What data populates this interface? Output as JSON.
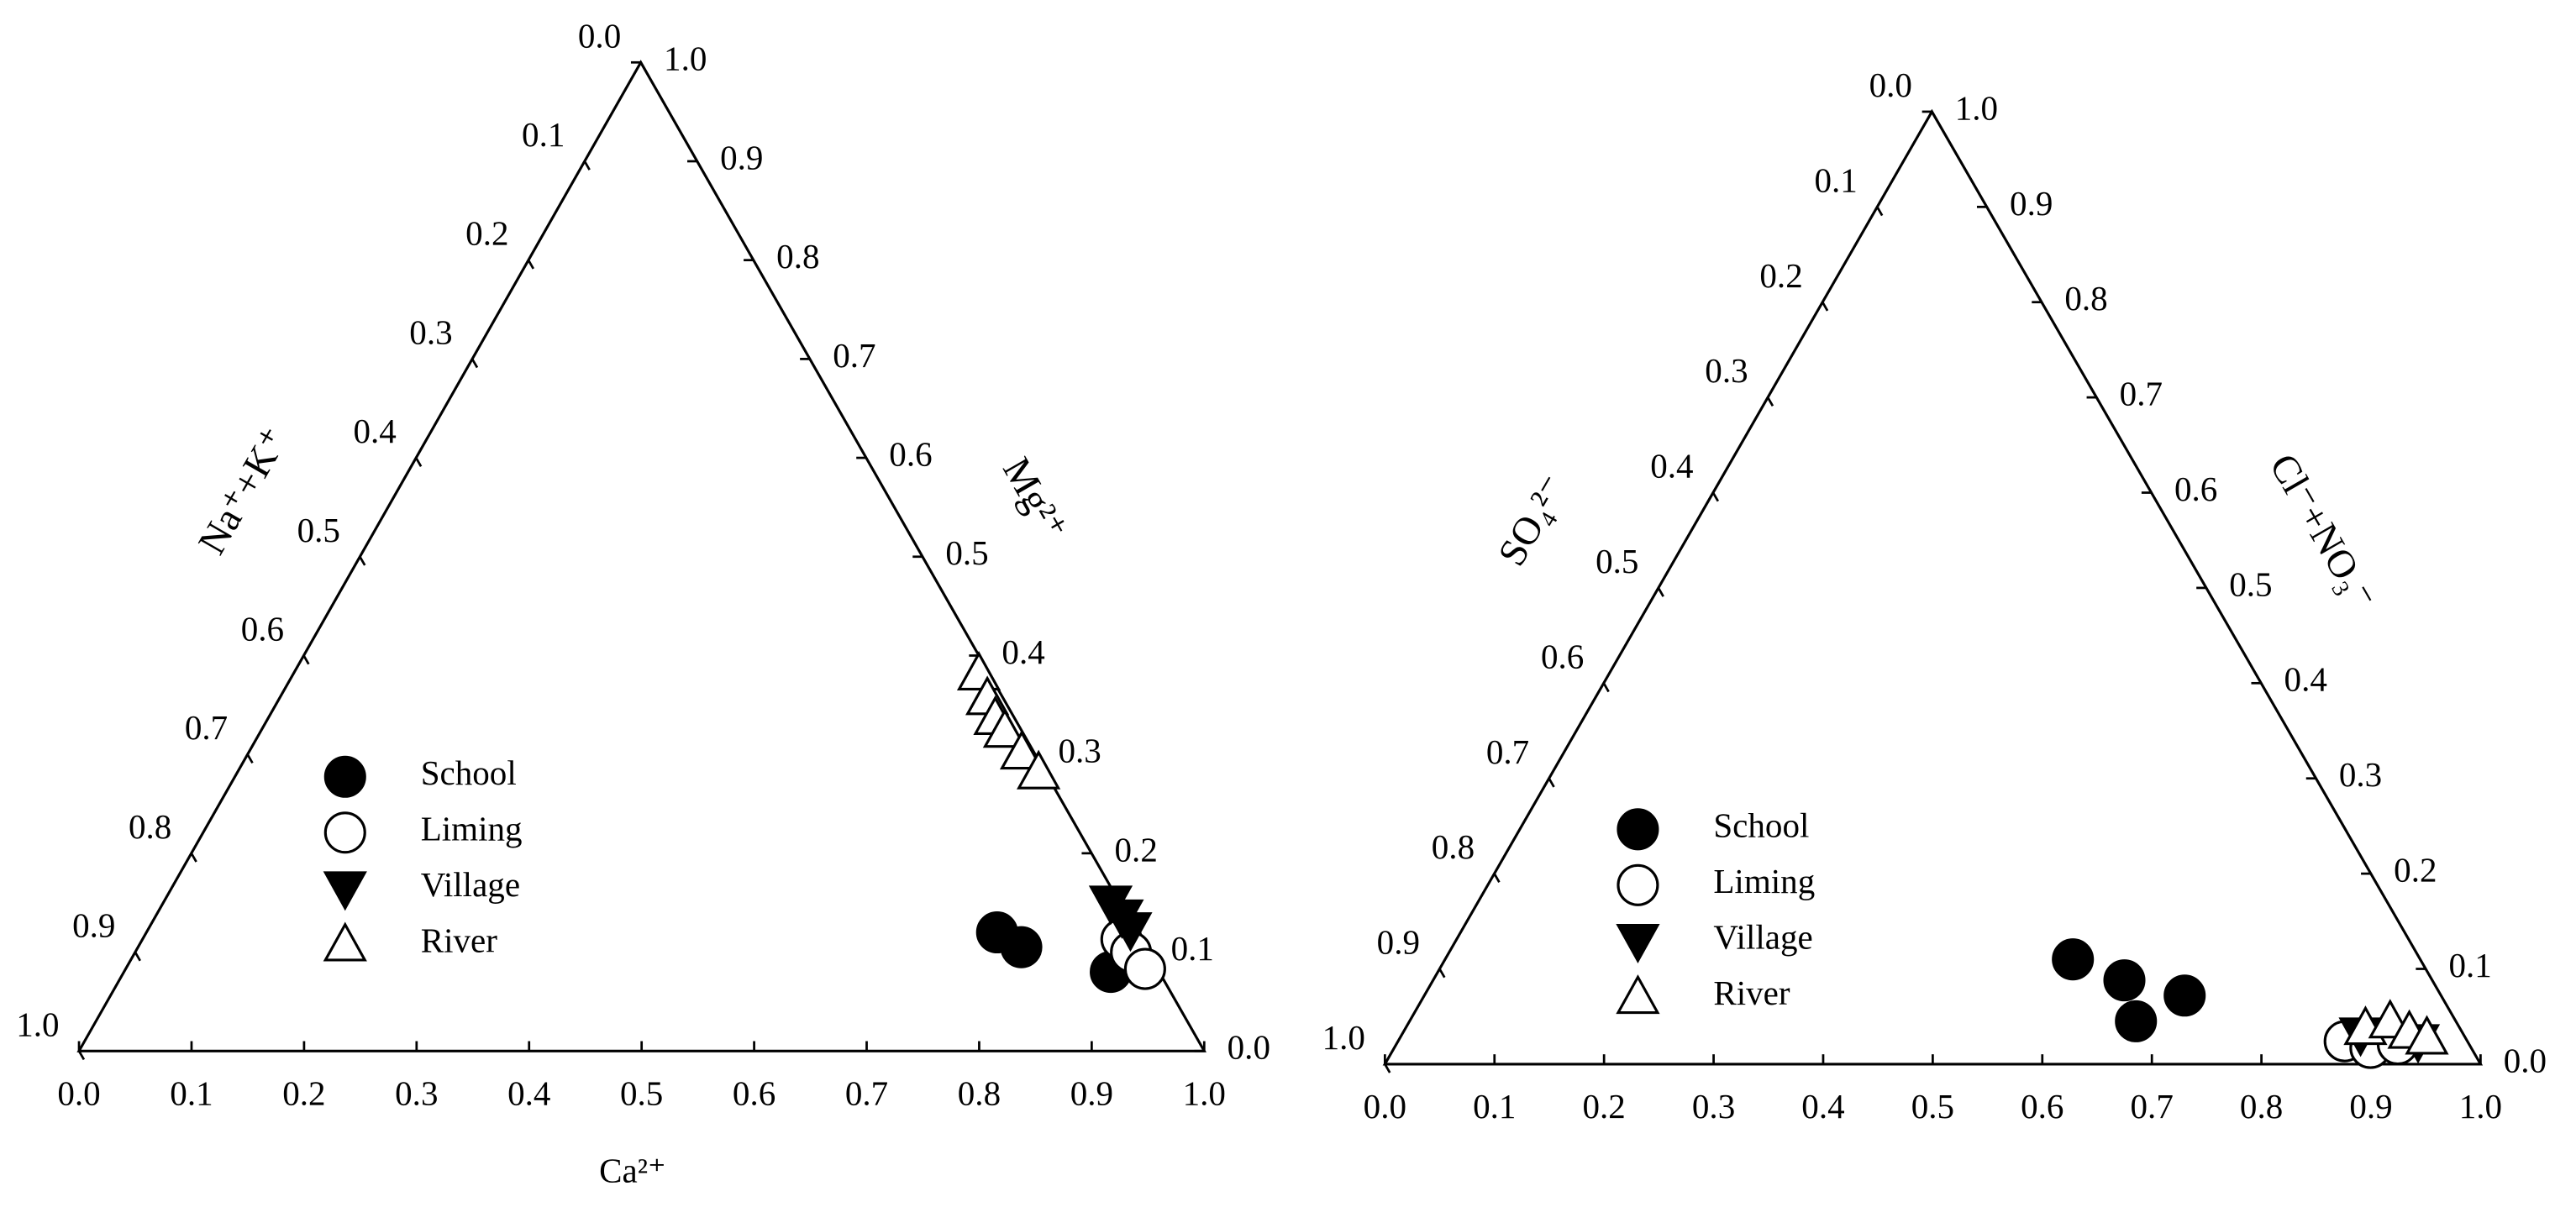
{
  "chart_data": [
    {
      "type": "ternary",
      "bottom_label": "Ca²⁺",
      "right_label": "Mg²⁺",
      "left_label": "Na⁺+K⁺",
      "bottom_ticks": [
        {
          "value": 0,
          "label": "0.0"
        },
        {
          "value": 0.1,
          "label": "0.1"
        },
        {
          "value": 0.2,
          "label": "0.2"
        },
        {
          "value": 0.3,
          "label": "0.3"
        },
        {
          "value": 0.4,
          "label": "0.4"
        },
        {
          "value": 0.5,
          "label": "0.5"
        },
        {
          "value": 0.6,
          "label": "0.6"
        },
        {
          "value": 0.7,
          "label": "0.7"
        },
        {
          "value": 0.8,
          "label": "0.8"
        },
        {
          "value": 0.9,
          "label": "0.9"
        },
        {
          "value": 1,
          "label": "1.0"
        }
      ],
      "right_ticks": [
        {
          "value": 0,
          "label": "0.0"
        },
        {
          "value": 0.1,
          "label": "0.1"
        },
        {
          "value": 0.2,
          "label": "0.2"
        },
        {
          "value": 0.3,
          "label": "0.3"
        },
        {
          "value": 0.4,
          "label": "0.4"
        },
        {
          "value": 0.5,
          "label": "0.5"
        },
        {
          "value": 0.6,
          "label": "0.6"
        },
        {
          "value": 0.7,
          "label": "0.7"
        },
        {
          "value": 0.8,
          "label": "0.8"
        },
        {
          "value": 0.9,
          "label": "0.9"
        },
        {
          "value": 1,
          "label": "1.0"
        }
      ],
      "left_ticks": [
        {
          "value": 0,
          "label": "0.0"
        },
        {
          "value": 0.1,
          "label": "0.1"
        },
        {
          "value": 0.2,
          "label": "0.2"
        },
        {
          "value": 0.3,
          "label": "0.3"
        },
        {
          "value": 0.4,
          "label": "0.4"
        },
        {
          "value": 0.5,
          "label": "0.5"
        },
        {
          "value": 0.6,
          "label": "0.6"
        },
        {
          "value": 0.7,
          "label": "0.7"
        },
        {
          "value": 0.8,
          "label": "0.8"
        },
        {
          "value": 0.9,
          "label": "0.9"
        },
        {
          "value": 1,
          "label": "1.0"
        }
      ],
      "series": [
        {
          "name": "School",
          "marker": "circle",
          "color": "#000000",
          "fill": "#000000",
          "x": [
            0.756,
            0.785,
            0.877
          ],
          "values": [
            0.12,
            0.105,
            0.08
          ]
        },
        {
          "name": "Liming",
          "marker": "circle",
          "color": "#000000",
          "fill": "#ffffff",
          "x": [
            0.87,
            0.885,
            0.906
          ],
          "values": [
            0.113,
            0.1,
            0.083
          ]
        },
        {
          "name": "Village",
          "marker": "triangle-down",
          "color": "#000000",
          "fill": "#000000",
          "x": [
            0.842,
            0.859,
            0.873
          ],
          "values": [
            0.15,
            0.136,
            0.123
          ]
        },
        {
          "name": "River",
          "marker": "triangle-up",
          "color": "#000000",
          "fill": "#ffffff",
          "x": [
            0.609,
            0.629,
            0.646,
            0.661,
            0.687,
            0.712
          ],
          "values": [
            0.382,
            0.357,
            0.337,
            0.324,
            0.302,
            0.282
          ]
        }
      ]
    },
    {
      "type": "ternary",
      "right_label": "Cl⁻+NO₃⁻",
      "left_label": "SO₄²⁻",
      "bottom_ticks": [
        {
          "value": 0,
          "label": "0.0"
        },
        {
          "value": 0.1,
          "label": "0.1"
        },
        {
          "value": 0.2,
          "label": "0.2"
        },
        {
          "value": 0.3,
          "label": "0.3"
        },
        {
          "value": 0.4,
          "label": "0.4"
        },
        {
          "value": 0.5,
          "label": "0.5"
        },
        {
          "value": 0.6,
          "label": "0.6"
        },
        {
          "value": 0.7,
          "label": "0.7"
        },
        {
          "value": 0.8,
          "label": "0.8"
        },
        {
          "value": 0.9,
          "label": "0.9"
        },
        {
          "value": 1,
          "label": "1.0"
        }
      ],
      "right_ticks": [
        {
          "value": 0,
          "label": "0.0"
        },
        {
          "value": 0.1,
          "label": "0.1"
        },
        {
          "value": 0.2,
          "label": "0.2"
        },
        {
          "value": 0.3,
          "label": "0.3"
        },
        {
          "value": 0.4,
          "label": "0.4"
        },
        {
          "value": 0.5,
          "label": "0.5"
        },
        {
          "value": 0.6,
          "label": "0.6"
        },
        {
          "value": 0.7,
          "label": "0.7"
        },
        {
          "value": 0.8,
          "label": "0.8"
        },
        {
          "value": 0.9,
          "label": "0.9"
        },
        {
          "value": 1,
          "label": "1.0"
        }
      ],
      "left_ticks": [
        {
          "value": 0,
          "label": "0.0"
        },
        {
          "value": 0.1,
          "label": "0.1"
        },
        {
          "value": 0.2,
          "label": "0.2"
        },
        {
          "value": 0.3,
          "label": "0.3"
        },
        {
          "value": 0.4,
          "label": "0.4"
        },
        {
          "value": 0.5,
          "label": "0.5"
        },
        {
          "value": 0.6,
          "label": "0.6"
        },
        {
          "value": 0.7,
          "label": "0.7"
        },
        {
          "value": 0.8,
          "label": "0.8"
        },
        {
          "value": 0.9,
          "label": "0.9"
        },
        {
          "value": 1,
          "label": "1.0"
        }
      ],
      "series": [
        {
          "name": "School",
          "marker": "circle",
          "color": "#000000",
          "fill": "#000000",
          "x": [
            0.573,
            0.631,
            0.694,
            0.663
          ],
          "values": [
            0.11,
            0.088,
            0.072,
            0.045
          ]
        },
        {
          "name": "Liming",
          "marker": "circle",
          "color": "#000000",
          "fill": "#ffffff",
          "x": [
            0.864,
            0.891,
            0.914
          ],
          "values": [
            0.024,
            0.017,
            0.021
          ]
        },
        {
          "name": "Village",
          "marker": "triangle-down",
          "color": "#000000",
          "fill": "#000000",
          "x": [
            0.875,
            0.931
          ],
          "values": [
            0.031,
            0.024
          ]
        },
        {
          "name": "River",
          "marker": "triangle-up",
          "color": "#000000",
          "fill": "#ffffff",
          "x": [
            0.876,
            0.895,
            0.918,
            0.937
          ],
          "values": [
            0.038,
            0.045,
            0.034,
            0.028
          ]
        }
      ]
    }
  ]
}
